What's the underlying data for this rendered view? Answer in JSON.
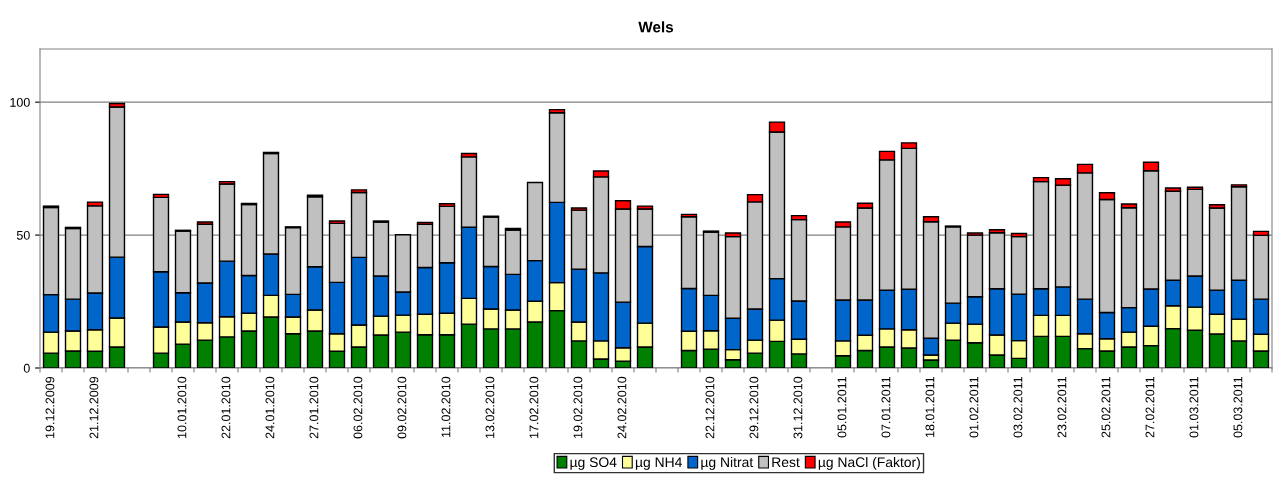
{
  "chart_data": {
    "type": "bar",
    "title": "Wels",
    "stacked": true,
    "categories": [
      "19.12.2009",
      null,
      "21.12.2009",
      null,
      null,
      null,
      "10.01.2010",
      null,
      "22.01.2010",
      null,
      "24.01.2010",
      null,
      "27.01.2010",
      null,
      "06.02.2010",
      null,
      "09.02.2010",
      null,
      "11.02.2010",
      null,
      "13.02.2010",
      null,
      "17.02.2010",
      null,
      "19.02.2010",
      null,
      "24.02.2010",
      null,
      null,
      null,
      "22.12.2010",
      null,
      "29.12.2010",
      null,
      "31.12.2010",
      null,
      "05.01.2011",
      null,
      "07.01.2011",
      null,
      "18.01.2011",
      null,
      "01.02.2011",
      null,
      "03.02.2011",
      null,
      "23.02.2011",
      null,
      "25.02.2011",
      null,
      "27.02.2011",
      null,
      "01.03.2011",
      null,
      "05.03.2011",
      null
    ],
    "series": [
      {
        "name": "µg SO4",
        "color": "#008000",
        "values": [
          5.6,
          6.4,
          6.3,
          7.9,
          null,
          5.6,
          9.0,
          10.5,
          11.7,
          13.9,
          19.2,
          12.9,
          13.9,
          6.3,
          7.9,
          12.4,
          13.5,
          12.5,
          12.5,
          16.5,
          14.7,
          14.7,
          17.3,
          21.6,
          10.2,
          3.4,
          2.6,
          7.9,
          null,
          6.6,
          7.1,
          3.1,
          5.6,
          10.0,
          5.3,
          null,
          4.6,
          6.6,
          7.9,
          7.5,
          3.0,
          10.5,
          9.5,
          4.9,
          3.6,
          11.9,
          11.9,
          7.3,
          6.4,
          7.9,
          8.4,
          14.8,
          14.2,
          12.8,
          10.2,
          6.4
        ]
      },
      {
        "name": "µg NH4",
        "color": "#ffff99",
        "values": [
          7.9,
          7.5,
          8.1,
          10.9,
          null,
          9.8,
          8.3,
          6.5,
          7.6,
          6.7,
          8.1,
          6.3,
          7.9,
          6.6,
          8.3,
          7.1,
          6.4,
          7.7,
          8.1,
          9.7,
          7.5,
          7.1,
          7.8,
          10.5,
          7.1,
          6.8,
          5.0,
          9.0,
          null,
          7.2,
          6.9,
          3.8,
          4.9,
          8.0,
          5.5,
          null,
          5.6,
          5.7,
          6.8,
          6.9,
          1.9,
          6.4,
          7.0,
          7.5,
          6.7,
          7.9,
          7.9,
          5.6,
          4.6,
          5.6,
          7.3,
          8.6,
          8.7,
          7.4,
          8.2,
          6.3
        ]
      },
      {
        "name": "µg Nitrat",
        "color": "#0066cc",
        "values": [
          14.1,
          12.0,
          13.8,
          22.9,
          null,
          20.8,
          11.0,
          15.0,
          20.9,
          14.2,
          15.6,
          8.5,
          16.3,
          19.3,
          25.4,
          15.1,
          8.7,
          17.6,
          19.0,
          26.8,
          16.0,
          13.4,
          15.3,
          30.2,
          19.9,
          25.6,
          17.2,
          28.8,
          null,
          16.1,
          13.3,
          11.8,
          11.7,
          15.6,
          14.4,
          null,
          15.4,
          13.3,
          14.6,
          15.2,
          6.3,
          7.5,
          10.3,
          17.4,
          17.5,
          10.0,
          10.7,
          13.0,
          9.9,
          9.2,
          14.0,
          9.6,
          11.7,
          9.1,
          14.6,
          13.2
        ]
      },
      {
        "name": "Rest",
        "color": "#c0c0c0",
        "values": [
          32.8,
          26.6,
          32.8,
          56.5,
          null,
          28.0,
          23.2,
          22.1,
          29.0,
          26.7,
          37.8,
          25.1,
          26.3,
          22.2,
          24.4,
          20.3,
          21.5,
          16.3,
          21.2,
          26.4,
          18.6,
          16.7,
          29.4,
          33.7,
          22.2,
          36.1,
          35.0,
          14.1,
          null,
          27.0,
          23.8,
          30.7,
          40.3,
          55.2,
          30.6,
          null,
          27.5,
          34.6,
          49.0,
          53.0,
          43.8,
          28.7,
          23.2,
          21.1,
          21.6,
          40.3,
          38.3,
          47.5,
          42.5,
          37.6,
          44.5,
          33.5,
          32.6,
          30.9,
          35.2,
          24.0
        ]
      },
      {
        "name": "µg NaCl (Faktor)",
        "color": "#ff0000",
        "values": [
          0.5,
          0.4,
          1.4,
          1.3,
          null,
          1.1,
          0.3,
          0.8,
          0.9,
          0.4,
          0.4,
          0.3,
          0.6,
          0.9,
          1.0,
          0.4,
          null,
          0.7,
          1.0,
          1.3,
          0.3,
          0.6,
          null,
          1.2,
          0.8,
          2.2,
          3.1,
          1.1,
          null,
          0.9,
          0.4,
          1.4,
          2.7,
          3.7,
          1.5,
          null,
          1.8,
          1.8,
          3.2,
          2.1,
          1.9,
          0.3,
          0.8,
          1.1,
          1.2,
          1.5,
          2.4,
          3.2,
          2.5,
          1.4,
          3.2,
          1.2,
          0.8,
          1.2,
          0.7,
          1.5
        ]
      }
    ],
    "ylim": [
      0,
      120
    ],
    "yticks": [
      0,
      50,
      100
    ],
    "grid": "y",
    "legend": "bottom"
  }
}
